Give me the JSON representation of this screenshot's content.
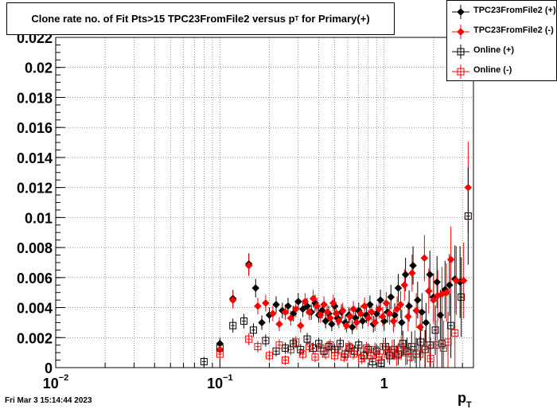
{
  "chart_data": {
    "type": "scatter",
    "title_main": "Clone rate no. of Fit Pts>15 TPC23FromFile2 versus p",
    "title_sub": "T",
    "title_tail": " for Primary(+)",
    "xlabel": "p",
    "xlabel_sub": "T",
    "xscale": "log",
    "xlim": [
      0.01,
      3.5
    ],
    "ylim": [
      0,
      0.022
    ],
    "grid": true,
    "legend_position": "top-right",
    "x_ticks": [
      {
        "value": 0.01,
        "base": "10",
        "exp": "−2"
      },
      {
        "value": 0.1,
        "base": "10",
        "exp": "−1"
      },
      {
        "value": 1,
        "base": "1",
        "exp": ""
      }
    ],
    "y_ticks": [
      "0",
      "0.002",
      "0.004",
      "0.006",
      "0.008",
      "0.01",
      "0.012",
      "0.014",
      "0.016",
      "0.018",
      "0.02",
      "0.022"
    ],
    "series": [
      {
        "name": "TPC23FromFile2 (+)",
        "color": "#000000",
        "marker": "diamond-filled",
        "points": [
          [
            0.1,
            0.0016
          ],
          [
            0.12,
            0.0046
          ],
          [
            0.15,
            0.0069
          ],
          [
            0.165,
            0.0053
          ],
          [
            0.18,
            0.003
          ],
          [
            0.2,
            0.0035
          ],
          [
            0.22,
            0.0042
          ],
          [
            0.24,
            0.0038
          ],
          [
            0.26,
            0.0041
          ],
          [
            0.28,
            0.0036
          ],
          [
            0.3,
            0.0044
          ],
          [
            0.32,
            0.0039
          ],
          [
            0.34,
            0.0041
          ],
          [
            0.36,
            0.0037
          ],
          [
            0.38,
            0.0043
          ],
          [
            0.4,
            0.0035
          ],
          [
            0.42,
            0.0038
          ],
          [
            0.44,
            0.0031
          ],
          [
            0.46,
            0.0036
          ],
          [
            0.48,
            0.0029
          ],
          [
            0.5,
            0.0041
          ],
          [
            0.52,
            0.0033
          ],
          [
            0.55,
            0.0037
          ],
          [
            0.58,
            0.003
          ],
          [
            0.61,
            0.0035
          ],
          [
            0.64,
            0.0027
          ],
          [
            0.67,
            0.0033
          ],
          [
            0.7,
            0.0038
          ],
          [
            0.74,
            0.0031
          ],
          [
            0.78,
            0.0035
          ],
          [
            0.82,
            0.0042
          ],
          [
            0.86,
            0.0029
          ],
          [
            0.9,
            0.0036
          ],
          [
            0.95,
            0.0045
          ],
          [
            1.0,
            0.0031
          ],
          [
            1.05,
            0.0037
          ],
          [
            1.1,
            0.0047
          ],
          [
            1.16,
            0.0035
          ],
          [
            1.22,
            0.0053
          ],
          [
            1.28,
            0.003
          ],
          [
            1.35,
            0.0062
          ],
          [
            1.42,
            0.0041
          ],
          [
            1.5,
            0.0068
          ],
          [
            1.6,
            0.0045
          ],
          [
            1.7,
            0.0037
          ],
          [
            1.8,
            0.003
          ],
          [
            1.9,
            0.0062
          ],
          [
            2.0,
            0.0047
          ],
          [
            2.1,
            0.0057
          ],
          [
            2.2,
            0.0035
          ],
          [
            2.35,
            0.0052
          ],
          [
            2.5,
            0.0055
          ],
          [
            2.7,
            0.0059
          ],
          [
            2.9,
            0.0057
          ]
        ]
      },
      {
        "name": "TPC23FromFile2 (-)",
        "color": "#ff0000",
        "marker": "diamond-filled",
        "points": [
          [
            0.1,
            0.0012
          ],
          [
            0.12,
            0.0045
          ],
          [
            0.15,
            0.0068
          ],
          [
            0.17,
            0.0041
          ],
          [
            0.19,
            0.0043
          ],
          [
            0.21,
            0.0036
          ],
          [
            0.23,
            0.0029
          ],
          [
            0.25,
            0.0037
          ],
          [
            0.27,
            0.0033
          ],
          [
            0.29,
            0.0039
          ],
          [
            0.31,
            0.0028
          ],
          [
            0.33,
            0.0044
          ],
          [
            0.35,
            0.0037
          ],
          [
            0.37,
            0.0046
          ],
          [
            0.39,
            0.0041
          ],
          [
            0.41,
            0.0035
          ],
          [
            0.43,
            0.0042
          ],
          [
            0.45,
            0.0037
          ],
          [
            0.47,
            0.0033
          ],
          [
            0.49,
            0.0043
          ],
          [
            0.51,
            0.0036
          ],
          [
            0.53,
            0.0031
          ],
          [
            0.56,
            0.0038
          ],
          [
            0.59,
            0.0028
          ],
          [
            0.62,
            0.0034
          ],
          [
            0.65,
            0.0039
          ],
          [
            0.68,
            0.003
          ],
          [
            0.72,
            0.0036
          ],
          [
            0.76,
            0.0041
          ],
          [
            0.8,
            0.0033
          ],
          [
            0.84,
            0.0037
          ],
          [
            0.88,
            0.003
          ],
          [
            0.93,
            0.0039
          ],
          [
            0.98,
            0.0034
          ],
          [
            1.03,
            0.0043
          ],
          [
            1.08,
            0.0036
          ],
          [
            1.14,
            0.0031
          ],
          [
            1.2,
            0.0039
          ],
          [
            1.26,
            0.0042
          ],
          [
            1.33,
            0.0055
          ],
          [
            1.4,
            0.0034
          ],
          [
            1.48,
            0.0063
          ],
          [
            1.57,
            0.0038
          ],
          [
            1.66,
            0.0027
          ],
          [
            1.76,
            0.0073
          ],
          [
            1.87,
            0.0051
          ],
          [
            2.0,
            0.0045
          ],
          [
            2.12,
            0.0048
          ],
          [
            2.25,
            0.0049
          ],
          [
            2.4,
            0.005
          ],
          [
            2.55,
            0.0072
          ],
          [
            2.75,
            0.0058
          ],
          [
            3.05,
            0.0058
          ],
          [
            3.25,
            0.012
          ]
        ]
      },
      {
        "name": "Online (+)",
        "color": "#000000",
        "marker": "square-open",
        "points": [
          [
            0.08,
            0.0004
          ],
          [
            0.1,
            0.0013
          ],
          [
            0.12,
            0.0028
          ],
          [
            0.14,
            0.0031
          ],
          [
            0.16,
            0.0025
          ],
          [
            0.19,
            0.0018
          ],
          [
            0.22,
            0.0011
          ],
          [
            0.25,
            0.0013
          ],
          [
            0.28,
            0.0016
          ],
          [
            0.31,
            0.0012
          ],
          [
            0.34,
            0.0019
          ],
          [
            0.37,
            0.0013
          ],
          [
            0.4,
            0.0016
          ],
          [
            0.43,
            0.0011
          ],
          [
            0.46,
            0.0014
          ],
          [
            0.5,
            0.0012
          ],
          [
            0.54,
            0.0016
          ],
          [
            0.58,
            0.0009
          ],
          [
            0.62,
            0.0013
          ],
          [
            0.66,
            0.0011
          ],
          [
            0.7,
            0.0015
          ],
          [
            0.75,
            0.0008
          ],
          [
            0.8,
            0.0012
          ],
          [
            0.85,
            0.0004
          ],
          [
            0.9,
            0.0011
          ],
          [
            0.96,
            0.0003
          ],
          [
            1.02,
            0.0014
          ],
          [
            1.08,
            0.0008
          ],
          [
            1.15,
            0.0012
          ],
          [
            1.22,
            0.0009
          ],
          [
            1.3,
            0.0016
          ],
          [
            1.38,
            0.0011
          ],
          [
            1.47,
            0.0014
          ],
          [
            1.57,
            0.0009
          ],
          [
            1.67,
            0.0017
          ],
          [
            1.78,
            0.0012
          ],
          [
            1.9,
            0.0015
          ],
          [
            2.05,
            0.0025
          ],
          [
            2.25,
            0.0016
          ],
          [
            2.55,
            0.0028
          ],
          [
            2.95,
            0.0047
          ],
          [
            3.25,
            0.0101
          ]
        ]
      },
      {
        "name": "Online (-)",
        "color": "#ff0000",
        "marker": "square-open",
        "points": [
          [
            0.1,
            0.0009
          ],
          [
            0.15,
            0.0019
          ],
          [
            0.17,
            0.0014
          ],
          [
            0.2,
            0.0008
          ],
          [
            0.23,
            0.0015
          ],
          [
            0.25,
            0.0005
          ],
          [
            0.27,
            0.0012
          ],
          [
            0.29,
            0.0017
          ],
          [
            0.32,
            0.0009
          ],
          [
            0.35,
            0.0014
          ],
          [
            0.38,
            0.0007
          ],
          [
            0.41,
            0.0013
          ],
          [
            0.44,
            0.0009
          ],
          [
            0.47,
            0.0015
          ],
          [
            0.5,
            0.0008
          ],
          [
            0.53,
            0.0012
          ],
          [
            0.57,
            0.0007
          ],
          [
            0.61,
            0.0014
          ],
          [
            0.65,
            0.0009
          ],
          [
            0.69,
            0.0011
          ],
          [
            0.73,
            0.0006
          ],
          [
            0.78,
            0.0013
          ],
          [
            0.83,
            0.0008
          ],
          [
            0.88,
            0.0012
          ],
          [
            0.93,
            0.0007
          ],
          [
            0.99,
            0.0014
          ],
          [
            1.05,
            0.0009
          ],
          [
            1.12,
            0.0012
          ],
          [
            1.19,
            0.0008
          ],
          [
            1.27,
            0.0013
          ],
          [
            1.35,
            0.001
          ],
          [
            1.44,
            0.0007
          ],
          [
            1.54,
            0.0014
          ],
          [
            1.65,
            0.0009
          ],
          [
            1.77,
            0.0012
          ],
          [
            1.92,
            0.0006
          ],
          [
            2.1,
            0.0015
          ],
          [
            2.3,
            0.0013
          ],
          [
            2.45,
            0.0017
          ],
          [
            2.7,
            0.0023
          ]
        ]
      }
    ]
  },
  "timestamp": "Fri Mar  3 15:14:44 2023"
}
